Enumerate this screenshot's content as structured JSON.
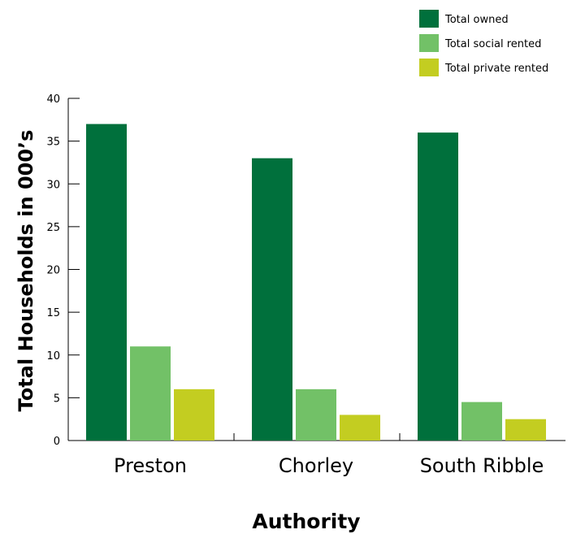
{
  "chart_data": {
    "type": "bar",
    "categories": [
      "Preston",
      "Chorley",
      "South Ribble"
    ],
    "series": [
      {
        "name": "Total owned",
        "values": [
          37,
          33,
          36
        ],
        "color": "#00703c"
      },
      {
        "name": "Total social rented",
        "values": [
          11,
          6,
          4.5
        ],
        "color": "#72c167"
      },
      {
        "name": "Total private rented",
        "values": [
          6,
          3,
          2.5
        ],
        "color": "#c3cd21"
      }
    ],
    "title": "",
    "xlabel": "Authority",
    "ylabel": "Total Households in 000’s",
    "ylim": [
      0,
      40
    ],
    "yticks": [
      0,
      5,
      10,
      15,
      20,
      25,
      30,
      35,
      40
    ],
    "grid": false,
    "legend_position": "top-right"
  }
}
